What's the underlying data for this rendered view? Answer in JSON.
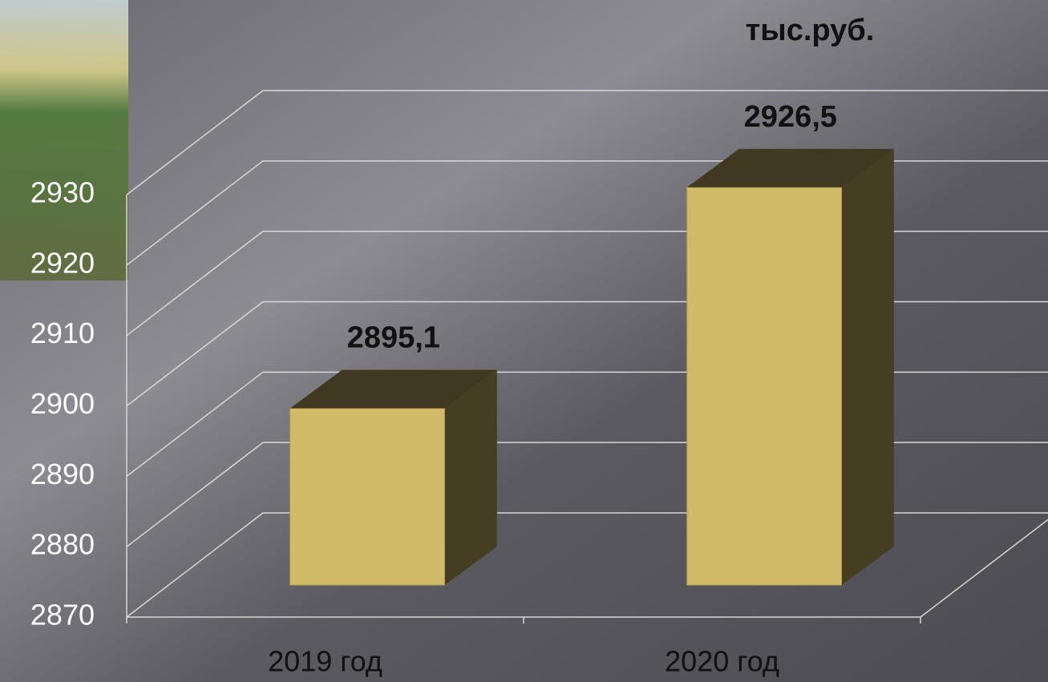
{
  "chart_data": {
    "type": "bar3d",
    "title": "тыс.руб.",
    "categories": [
      "2019 год",
      "2020 год"
    ],
    "values": [
      2895.1,
      2926.5
    ],
    "value_labels": [
      "2895,1",
      "2926,5"
    ],
    "color": "#d0bb68",
    "ylim": [
      2870,
      2930
    ],
    "yticks": [
      2870,
      2880,
      2890,
      2900,
      2910,
      2920,
      2930
    ],
    "grid": true
  }
}
